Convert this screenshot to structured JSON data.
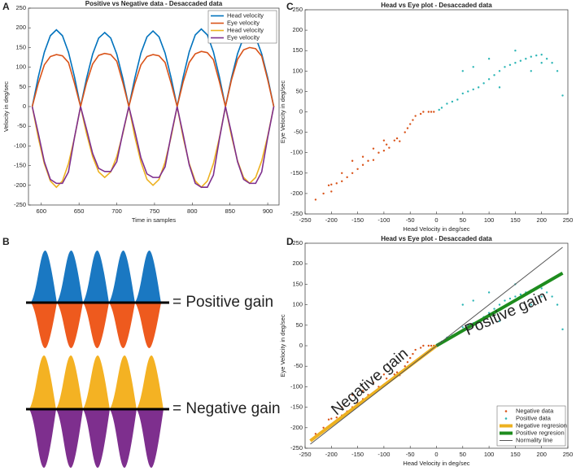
{
  "panel_labels": [
    "A",
    "B",
    "C",
    "D"
  ],
  "panel_b": {
    "positive_label": "= Positive gain",
    "negative_label": "= Negative gain"
  },
  "chart_data": [
    {
      "type": "line",
      "title": "Positive vs Negative data - Desaccaded data",
      "x_label": "Time in samples",
      "y_label": "Velocity in deg/sec",
      "x": [
        588,
        596,
        604,
        612,
        620,
        628,
        636,
        644,
        652,
        660,
        668,
        676,
        684,
        692,
        700,
        708,
        716,
        724,
        732,
        740,
        748,
        756,
        764,
        772,
        780,
        788,
        796,
        804,
        812,
        820,
        828,
        836,
        844,
        852,
        860,
        868,
        876,
        884,
        892,
        900,
        908
      ],
      "series": [
        {
          "name": "Head velocity",
          "color": "#0072BD",
          "values": [
            0,
            75,
            138,
            180,
            195,
            180,
            138,
            75,
            0,
            72,
            133,
            174,
            188,
            174,
            133,
            72,
            0,
            73,
            136,
            177,
            192,
            177,
            136,
            73,
            0,
            75,
            139,
            182,
            197,
            182,
            139,
            75,
            0,
            73,
            134,
            176,
            190,
            176,
            134,
            73,
            0
          ]
        },
        {
          "name": "Eye velocity",
          "color": "#D95319",
          "values": [
            0,
            59,
            106,
            127,
            132,
            129,
            112,
            59,
            0,
            61,
            108,
            130,
            135,
            132,
            115,
            61,
            0,
            59,
            106,
            127,
            132,
            129,
            112,
            59,
            0,
            63,
            112,
            134,
            140,
            137,
            119,
            63,
            0,
            68,
            120,
            144,
            150,
            147,
            128,
            68,
            0
          ]
        },
        {
          "name": "Head velocity",
          "color": "#EDB120",
          "values": [
            0,
            -79,
            -145,
            -189,
            -205,
            -189,
            -145,
            -79,
            0,
            -69,
            -127,
            -166,
            -180,
            -166,
            -127,
            -69,
            0,
            -77,
            -141,
            -185,
            -200,
            -185,
            -141,
            -77,
            0,
            -79,
            -145,
            -189,
            -205,
            -189,
            -145,
            -79,
            0,
            -75,
            -138,
            -180,
            -195,
            -180,
            -138,
            -75,
            0
          ]
        },
        {
          "name": "Eye velocity",
          "color": "#7E2F8E",
          "values": [
            0,
            -68,
            -140,
            -185,
            -195,
            -195,
            -166,
            -78,
            0,
            -58,
            -119,
            -157,
            -165,
            -165,
            -140,
            -66,
            0,
            -63,
            -130,
            -171,
            -180,
            -180,
            -153,
            -72,
            0,
            -72,
            -148,
            -195,
            -205,
            -205,
            -174,
            -82,
            0,
            -68,
            -140,
            -185,
            -195,
            -195,
            -166,
            -78,
            0
          ]
        }
      ],
      "xlim": [
        583,
        915
      ],
      "xticks": [
        600,
        650,
        700,
        750,
        800,
        850,
        900
      ],
      "ylim": [
        -250,
        250
      ],
      "yticks": [
        -250,
        -200,
        -150,
        -100,
        -50,
        0,
        50,
        100,
        150,
        200,
        250
      ],
      "legend": "upper right"
    },
    {
      "type": "scatter",
      "title": "Head vs Eye plot - Desaccaded data",
      "x_label": "Head Velocity in deg/sec",
      "y_label": "Eye Velocity in deg/sec",
      "series": [
        {
          "color": "#D95319",
          "x": [
            -230,
            -215,
            -205,
            -200,
            -190,
            -180,
            -170,
            -160,
            -150,
            -140,
            -130,
            -120,
            -110,
            -100,
            -95,
            -90,
            -80,
            -75,
            -70,
            -60,
            -55,
            -50,
            -45,
            -40,
            -30,
            -25,
            -15,
            -10,
            -5,
            -120,
            -160,
            -180,
            -140,
            -100,
            -200
          ],
          "values": [
            -215,
            -200,
            -180,
            -178,
            -175,
            -170,
            -160,
            -150,
            -140,
            -130,
            -120,
            -118,
            -100,
            -95,
            -80,
            -88,
            -70,
            -65,
            -72,
            -50,
            -40,
            -30,
            -20,
            -10,
            -5,
            0,
            0,
            0,
            0,
            -90,
            -120,
            -150,
            -110,
            -70,
            -195
          ]
        },
        {
          "color": "#2BB5B5",
          "x": [
            5,
            10,
            20,
            30,
            40,
            50,
            60,
            70,
            80,
            90,
            100,
            110,
            120,
            130,
            140,
            150,
            160,
            170,
            180,
            190,
            200,
            210,
            220,
            230,
            50,
            70,
            100,
            150,
            120,
            180,
            200,
            240
          ],
          "values": [
            5,
            10,
            20,
            25,
            30,
            45,
            50,
            55,
            60,
            70,
            80,
            90,
            100,
            110,
            115,
            120,
            125,
            130,
            135,
            138,
            140,
            130,
            120,
            100,
            100,
            110,
            130,
            150,
            60,
            100,
            120,
            40
          ]
        }
      ],
      "xlim": [
        -250,
        250
      ],
      "xticks": [
        -250,
        -200,
        -150,
        -100,
        -50,
        0,
        50,
        100,
        150,
        200,
        250
      ],
      "ylim": [
        -250,
        250
      ],
      "yticks": [
        -250,
        -200,
        -150,
        -100,
        -50,
        0,
        50,
        100,
        150,
        200,
        250
      ]
    },
    {
      "type": "scatter",
      "title": "Head vs Eye plot - Desaccaded data",
      "x_label": "Head Velocity in deg/sec",
      "y_label": "Eye Velocity in deg/sec",
      "series": [
        {
          "name": "Negative data",
          "mode": "markers",
          "color": "#D95319",
          "x": [
            -230,
            -215,
            -205,
            -200,
            -190,
            -180,
            -170,
            -160,
            -150,
            -140,
            -130,
            -120,
            -110,
            -100,
            -95,
            -90,
            -80,
            -75,
            -70,
            -60,
            -55,
            -50,
            -45,
            -40,
            -30,
            -25,
            -15,
            -10,
            -5,
            -120,
            -160,
            -180,
            -140,
            -100,
            -200
          ],
          "values": [
            -215,
            -200,
            -180,
            -178,
            -175,
            -170,
            -160,
            -150,
            -140,
            -130,
            -120,
            -118,
            -100,
            -95,
            -80,
            -88,
            -70,
            -65,
            -72,
            -50,
            -40,
            -30,
            -20,
            -10,
            -5,
            0,
            0,
            0,
            0,
            -90,
            -120,
            -150,
            -110,
            -70,
            -195
          ]
        },
        {
          "name": "Positive data",
          "mode": "markers",
          "color": "#2BB5B5",
          "x": [
            5,
            10,
            20,
            30,
            40,
            50,
            60,
            70,
            80,
            90,
            100,
            110,
            120,
            130,
            140,
            150,
            160,
            170,
            180,
            190,
            200,
            210,
            220,
            230,
            50,
            70,
            100,
            150,
            120,
            180,
            200,
            240
          ],
          "values": [
            5,
            10,
            20,
            25,
            30,
            45,
            50,
            55,
            60,
            70,
            80,
            90,
            100,
            110,
            115,
            120,
            125,
            130,
            135,
            138,
            140,
            130,
            120,
            100,
            100,
            110,
            130,
            150,
            60,
            100,
            120,
            40
          ]
        },
        {
          "name": "Negative regresion",
          "mode": "line",
          "line_width": 4,
          "color": "#EDB120",
          "x": [
            -240,
            0
          ],
          "values": [
            -232,
            0
          ]
        },
        {
          "name": "Positive regresion",
          "mode": "line",
          "line_width": 4,
          "color": "#1E8C1E",
          "x": [
            0,
            240
          ],
          "values": [
            0,
            177
          ]
        },
        {
          "name": "Normality line",
          "mode": "line",
          "line_width": 1,
          "color": "#555555",
          "x": [
            -240,
            240
          ],
          "values": [
            -240,
            240
          ]
        }
      ],
      "annotations": [
        {
          "text": "Negative gain",
          "color": "#E0A526"
        },
        {
          "text": "Positive gain",
          "color": "#1E8C1E"
        }
      ],
      "xlim": [
        -250,
        250
      ],
      "xticks": [
        -250,
        -200,
        -150,
        -100,
        -50,
        0,
        50,
        100,
        150,
        200,
        250
      ],
      "ylim": [
        -250,
        250
      ],
      "yticks": [
        -250,
        -200,
        -150,
        -100,
        -50,
        0,
        50,
        100,
        150,
        200,
        250
      ],
      "legend": "lower right"
    }
  ]
}
